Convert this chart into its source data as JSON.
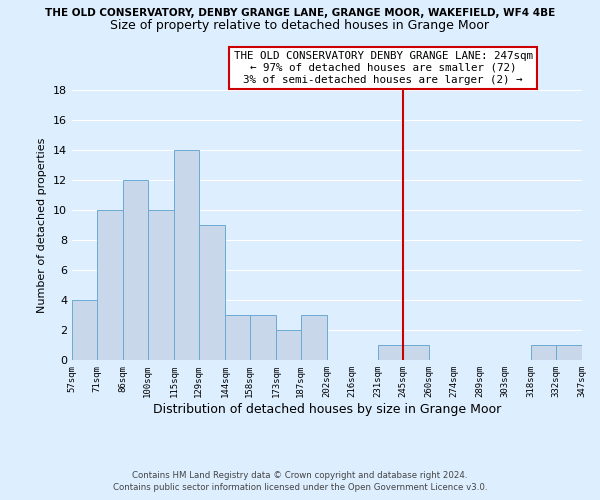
{
  "title_main": "THE OLD CONSERVATORY, DENBY GRANGE LANE, GRANGE MOOR, WAKEFIELD, WF4 4BE",
  "title_sub": "Size of property relative to detached houses in Grange Moor",
  "xlabel": "Distribution of detached houses by size in Grange Moor",
  "ylabel": "Number of detached properties",
  "bar_left_edges": [
    57,
    71,
    86,
    100,
    115,
    129,
    144,
    158,
    173,
    187,
    202,
    216,
    231,
    245,
    260,
    274,
    289,
    303,
    318,
    332
  ],
  "bar_heights": [
    4,
    10,
    12,
    10,
    14,
    9,
    3,
    3,
    2,
    3,
    0,
    0,
    1,
    1,
    0,
    0,
    0,
    0,
    1,
    1
  ],
  "bar_widths": [
    14,
    15,
    14,
    15,
    14,
    15,
    14,
    15,
    14,
    15,
    14,
    15,
    14,
    15,
    14,
    15,
    14,
    15,
    14,
    15
  ],
  "tick_labels": [
    "57sqm",
    "71sqm",
    "86sqm",
    "100sqm",
    "115sqm",
    "129sqm",
    "144sqm",
    "158sqm",
    "173sqm",
    "187sqm",
    "202sqm",
    "216sqm",
    "231sqm",
    "245sqm",
    "260sqm",
    "274sqm",
    "289sqm",
    "303sqm",
    "318sqm",
    "332sqm",
    "347sqm"
  ],
  "tick_positions": [
    57,
    71,
    86,
    100,
    115,
    129,
    144,
    158,
    173,
    187,
    202,
    216,
    231,
    245,
    260,
    274,
    289,
    303,
    318,
    332,
    347
  ],
  "bar_color": "#c8d8ea",
  "bar_edgecolor": "#6aaad4",
  "vline_x": 245,
  "vline_color": "#cc0000",
  "ylim": [
    0,
    18
  ],
  "yticks": [
    0,
    2,
    4,
    6,
    8,
    10,
    12,
    14,
    16,
    18
  ],
  "annotation_lines": [
    "THE OLD CONSERVATORY DENBY GRANGE LANE: 247sqm",
    "← 97% of detached houses are smaller (72)",
    "3% of semi-detached houses are larger (2) →"
  ],
  "footer_line1": "Contains HM Land Registry data © Crown copyright and database right 2024.",
  "footer_line2": "Contains public sector information licensed under the Open Government Licence v3.0.",
  "bg_color": "#ddeeff",
  "grid_color": "#ffffff"
}
